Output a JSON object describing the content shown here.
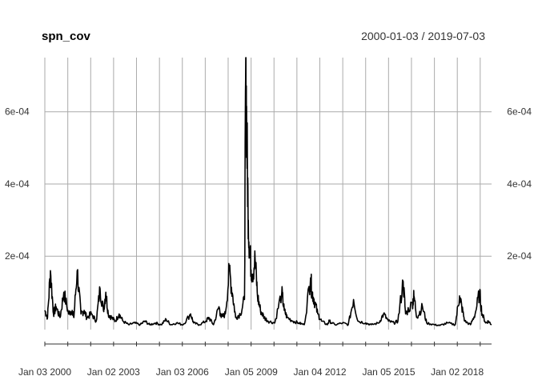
{
  "chart_data": {
    "type": "line",
    "title": "spn_cov",
    "date_range": "2000-01-03 / 2019-07-03",
    "x_tick_labels": [
      "Jan 03 2000",
      "Jan 02 2003",
      "Jan 03 2006",
      "Jan 05 2009",
      "Jan 04 2012",
      "Jan 05 2015",
      "Jan 02 2018"
    ],
    "y_tick_labels": [
      "2e-04",
      "4e-04",
      "6e-04"
    ],
    "y_ticks": [
      0.0002,
      0.0004,
      0.0006
    ],
    "ylim": [
      -3e-05,
      0.00075
    ],
    "xlim": [
      "2000-01-03",
      "2019-07-03"
    ],
    "grid": true,
    "y_axis_sides": "both",
    "series": [
      {
        "color": "#000000",
        "x": [
          "2000-01-03",
          "2000-02-15",
          "2000-04-01",
          "2000-05-20",
          "2000-07-01",
          "2000-09-01",
          "2000-11-01",
          "2001-01-15",
          "2001-03-15",
          "2001-04-10",
          "2001-06-01",
          "2001-08-01",
          "2001-09-20",
          "2001-11-01",
          "2002-01-15",
          "2002-04-01",
          "2002-06-01",
          "2002-07-25",
          "2002-09-01",
          "2002-10-10",
          "2002-12-01",
          "2003-02-01",
          "2003-04-01",
          "2003-06-01",
          "2003-09-01",
          "2003-12-01",
          "2004-03-01",
          "2004-05-15",
          "2004-08-01",
          "2004-11-01",
          "2005-02-01",
          "2005-04-20",
          "2005-07-01",
          "2005-10-01",
          "2006-01-15",
          "2006-05-15",
          "2006-07-01",
          "2006-10-01",
          "2007-01-15",
          "2007-03-01",
          "2007-05-15",
          "2007-08-10",
          "2007-09-15",
          "2007-11-20",
          "2008-01-22",
          "2008-03-17",
          "2008-05-01",
          "2008-07-15",
          "2008-09-20",
          "2008-10-10",
          "2008-10-27",
          "2008-11-20",
          "2008-12-15",
          "2009-01-20",
          "2009-03-09",
          "2009-04-15",
          "2009-06-01",
          "2009-08-01",
          "2009-10-01",
          "2010-01-15",
          "2010-05-07",
          "2010-06-15",
          "2010-08-01",
          "2010-11-01",
          "2011-02-01",
          "2011-05-01",
          "2011-08-08",
          "2011-09-01",
          "2011-10-04",
          "2011-12-01",
          "2012-02-01",
          "2012-05-01",
          "2012-06-01",
          "2012-09-01",
          "2013-01-01",
          "2013-04-01",
          "2013-06-24",
          "2013-09-01",
          "2014-01-01",
          "2014-04-01",
          "2014-08-01",
          "2014-10-15",
          "2015-01-01",
          "2015-04-01",
          "2015-06-01",
          "2015-08-24",
          "2015-10-01",
          "2016-01-20",
          "2016-02-11",
          "2016-04-01",
          "2016-06-27",
          "2016-09-01",
          "2017-01-01",
          "2017-04-01",
          "2017-08-01",
          "2017-12-01",
          "2018-02-08",
          "2018-03-15",
          "2018-05-01",
          "2018-08-01",
          "2018-10-15",
          "2018-12-24",
          "2019-02-01",
          "2019-04-01",
          "2019-05-15",
          "2019-07-03"
        ],
        "values": [
          5e-05,
          3e-05,
          0.00016,
          4e-05,
          6e-05,
          3e-05,
          0.0001,
          4e-05,
          5e-05,
          3e-05,
          0.00016,
          4e-05,
          5e-05,
          3e-05,
          4e-05,
          2e-05,
          0.00011,
          5e-05,
          0.0001,
          4e-05,
          3e-05,
          2e-05,
          4e-05,
          2e-05,
          1e-05,
          1.5e-05,
          1e-05,
          2e-05,
          1e-05,
          1.5e-05,
          1e-05,
          2.5e-05,
          1e-05,
          1.5e-05,
          1e-05,
          4e-05,
          1.5e-05,
          1e-05,
          2e-05,
          3e-05,
          1e-05,
          6e-05,
          3e-05,
          4e-05,
          0.00016,
          9e-05,
          3e-05,
          4e-05,
          8e-05,
          0.00075,
          0.00052,
          0.0003,
          0.0002,
          0.00015,
          0.00019,
          9e-05,
          5e-05,
          3e-05,
          2e-05,
          1.5e-05,
          0.0001,
          5e-05,
          3e-05,
          2e-05,
          1.5e-05,
          1e-05,
          0.00014,
          0.0001,
          8e-05,
          4e-05,
          2e-05,
          1e-05,
          2e-05,
          1e-05,
          1.5e-05,
          1e-05,
          8e-05,
          2e-05,
          1.5e-05,
          1e-05,
          1.5e-05,
          4e-05,
          2e-05,
          1.5e-05,
          2e-05,
          0.00013,
          4e-05,
          7e-05,
          9e-05,
          3e-05,
          6e-05,
          1.5e-05,
          1e-05,
          8e-06,
          1.5e-05,
          1e-05,
          9e-05,
          6e-05,
          2e-05,
          1e-05,
          4e-05,
          0.0001,
          4e-05,
          1.5e-05,
          2e-05,
          1e-05
        ]
      }
    ]
  }
}
